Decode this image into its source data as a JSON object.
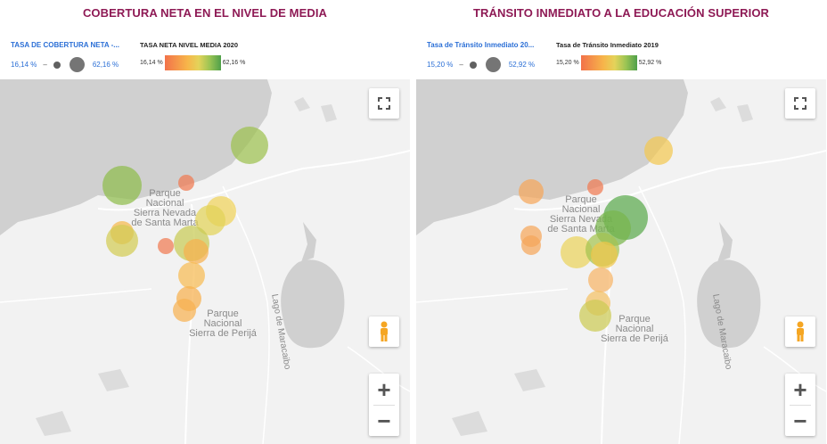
{
  "panels": [
    {
      "title": "COBERTURA NETA EN EL NIVEL DE MEDIA",
      "size_legend": {
        "label": "TASA DE COBERTURA NETA -...",
        "min": "16,14 %",
        "max": "62,16 %",
        "dash": "–"
      },
      "color_legend": {
        "label": "TASA NETA NIVEL MEDIA 2020",
        "min": "16,14 %",
        "max": "62,16 %"
      },
      "map_labels": [
        "Parque",
        "Nacional",
        "Sierra Nevada",
        "de Santa Marta",
        "Parque",
        "Nacional",
        "Sierra de Perijá",
        "Lago de Maracaibo"
      ],
      "bubbles": [
        {
          "x": 280,
          "y": 74,
          "r": 21,
          "color": "#9cc04f"
        },
        {
          "x": 137,
          "y": 119,
          "r": 22,
          "color": "#8fbc4c"
        },
        {
          "x": 209,
          "y": 116,
          "r": 9,
          "color": "#f07a52"
        },
        {
          "x": 248,
          "y": 148,
          "r": 17,
          "color": "#f0d25a"
        },
        {
          "x": 236,
          "y": 158,
          "r": 17,
          "color": "#e2d257"
        },
        {
          "x": 137,
          "y": 172,
          "r": 13,
          "color": "#f5b84c"
        },
        {
          "x": 137,
          "y": 181,
          "r": 18,
          "color": "#d3cc55"
        },
        {
          "x": 186,
          "y": 187,
          "r": 9,
          "color": "#f07a52"
        },
        {
          "x": 215,
          "y": 184,
          "r": 20,
          "color": "#c7cb54"
        },
        {
          "x": 220,
          "y": 193,
          "r": 14,
          "color": "#f7b04d"
        },
        {
          "x": 215,
          "y": 220,
          "r": 15,
          "color": "#f6bb53"
        },
        {
          "x": 212,
          "y": 246,
          "r": 14,
          "color": "#f7b04d"
        },
        {
          "x": 207,
          "y": 259,
          "r": 13,
          "color": "#f6b252"
        }
      ]
    },
    {
      "title": "TRÁNSITO INMEDIATO A LA EDUCACIÓN SUPERIOR",
      "size_legend": {
        "label": "Tasa de Tránsito Inmediato 20...",
        "min": "15,20 %",
        "max": "52,92 %",
        "dash": "–"
      },
      "color_legend": {
        "label": "Tasa de Tránsito Inmediato 2019",
        "min": "15,20 %",
        "max": "52,92 %"
      },
      "map_labels": [
        "Parque",
        "Nacional",
        "Sierra Nevada",
        "de Santa Marta",
        "Parque",
        "Nacional",
        "Sierra de Perijá",
        "Lago de Maracaibo"
      ],
      "bubbles": [
        {
          "x": 272,
          "y": 80,
          "r": 16,
          "color": "#f3c852"
        },
        {
          "x": 129,
          "y": 126,
          "r": 14,
          "color": "#f5a65a"
        },
        {
          "x": 201,
          "y": 121,
          "r": 9,
          "color": "#f07a52"
        },
        {
          "x": 235,
          "y": 155,
          "r": 25,
          "color": "#5aa94c"
        },
        {
          "x": 221,
          "y": 167,
          "r": 20,
          "color": "#78b54c"
        },
        {
          "x": 129,
          "y": 176,
          "r": 12,
          "color": "#f5a65a"
        },
        {
          "x": 129,
          "y": 186,
          "r": 11,
          "color": "#f5a65a"
        },
        {
          "x": 180,
          "y": 194,
          "r": 18,
          "color": "#ead35b"
        },
        {
          "x": 209,
          "y": 191,
          "r": 19,
          "color": "#a5c451"
        },
        {
          "x": 211,
          "y": 197,
          "r": 15,
          "color": "#f0c649"
        },
        {
          "x": 207,
          "y": 225,
          "r": 14,
          "color": "#f7b467"
        },
        {
          "x": 204,
          "y": 251,
          "r": 14,
          "color": "#f4c064"
        },
        {
          "x": 201,
          "y": 265,
          "r": 18,
          "color": "#cccb55"
        }
      ]
    }
  ]
}
